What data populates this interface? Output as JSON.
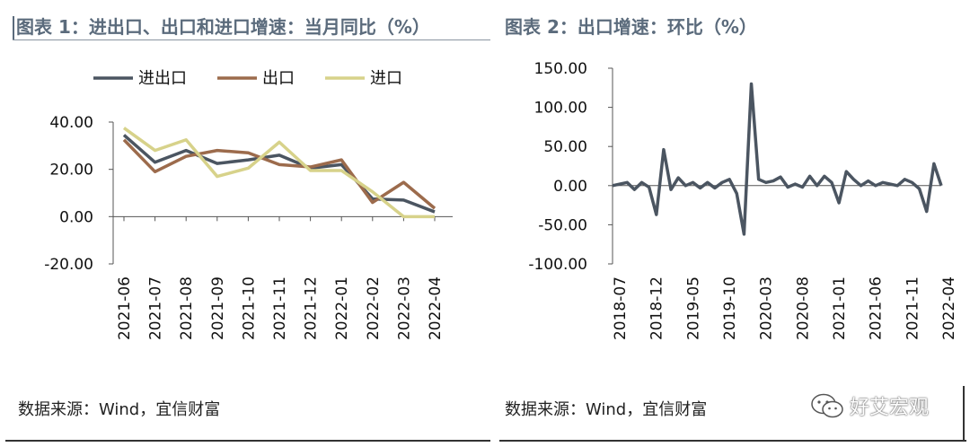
{
  "header": {
    "chart1_title": "图表 1：进出口、出口和进口增速：当月同比（%）",
    "chart2_title": "图表 2：出口增速：环比（%）"
  },
  "footer": {
    "source1": "数据来源：Wind，宜信财富",
    "source2": "数据来源：Wind，宜信财富",
    "watermark": "好艾宏观"
  },
  "colors": {
    "series_total": "#4b5561",
    "series_export": "#9c6b4c",
    "series_import": "#d7d28a",
    "chart2_line": "#4b5561"
  },
  "chart_data": [
    {
      "type": "line",
      "title": "图表 1：进出口、出口和进口增速：当月同比（%）",
      "categories": [
        "2021-06",
        "2021-07",
        "2021-08",
        "2021-09",
        "2021-10",
        "2021-11",
        "2021-12",
        "2022-01",
        "2022-02",
        "2022-03",
        "2022-04"
      ],
      "series": [
        {
          "name": "进出口",
          "values": [
            34.5,
            23.0,
            28.0,
            22.5,
            24.0,
            26.0,
            20.5,
            22.0,
            7.5,
            7.0,
            2.0
          ]
        },
        {
          "name": "出口",
          "values": [
            32.5,
            19.0,
            25.5,
            28.0,
            27.0,
            22.0,
            21.0,
            24.0,
            6.0,
            14.5,
            3.5
          ]
        },
        {
          "name": "进口",
          "values": [
            37.5,
            28.0,
            32.5,
            17.0,
            20.5,
            31.5,
            19.5,
            19.5,
            10.5,
            0.0,
            0.0
          ]
        }
      ],
      "yticks": [
        "40.00",
        "20.00",
        "0.00",
        "-20.00"
      ],
      "ylim": [
        -20,
        40
      ],
      "legend": "top",
      "grid": false
    },
    {
      "type": "line",
      "title": "图表 2：出口增速：环比（%）",
      "xticks": [
        "2018-07",
        "2018-12",
        "2019-05",
        "2019-10",
        "2020-03",
        "2020-08",
        "2021-01",
        "2021-06",
        "2021-11",
        "2022-04"
      ],
      "x_start": "2018-07",
      "x_end": "2022-04",
      "series": [
        {
          "values": [
            0,
            2,
            4,
            -5,
            4,
            -2,
            -37,
            46,
            -5,
            10,
            0,
            4,
            -3,
            4,
            -3,
            4,
            8,
            -10,
            -62,
            130,
            8,
            4,
            6,
            11,
            -2,
            2,
            -2,
            12,
            0,
            12,
            4,
            -22,
            18,
            8,
            0,
            6,
            0,
            4,
            2,
            0,
            8,
            4,
            -4,
            -33,
            28,
            0
          ]
        }
      ],
      "yticks": [
        "150.00",
        "100.00",
        "50.00",
        "0.00",
        "-50.00",
        "-100.00"
      ],
      "ylim": [
        -100,
        150
      ],
      "grid": false
    }
  ]
}
